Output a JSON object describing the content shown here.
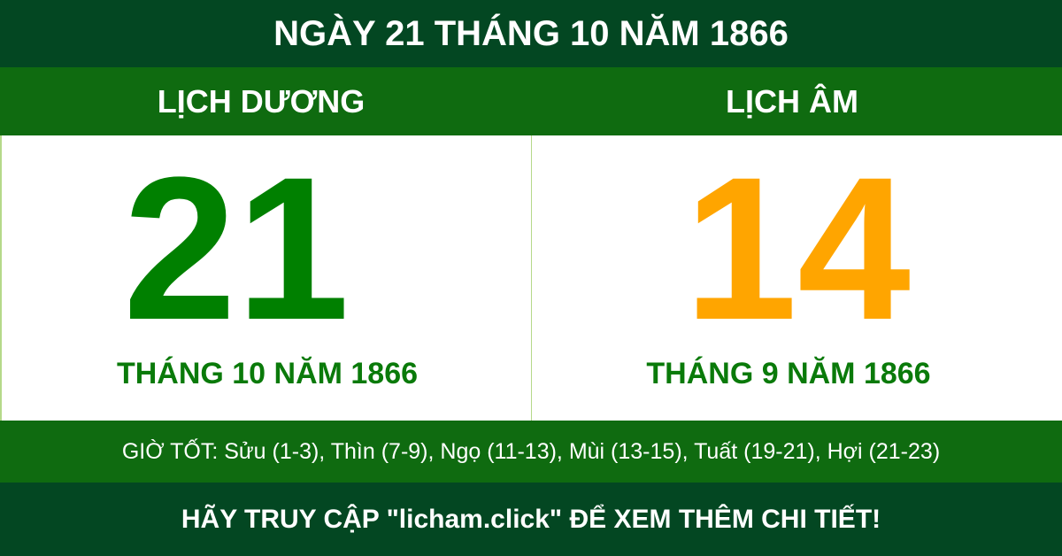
{
  "title": "NGÀY 21 THÁNG 10 NĂM 1866",
  "solar": {
    "heading": "LỊCH DƯƠNG",
    "day": "21",
    "month_year": "THÁNG 10 NĂM 1866"
  },
  "lunar": {
    "heading": "LỊCH ÂM",
    "day": "14",
    "month_year": "THÁNG 9 NĂM 1866"
  },
  "good_hours": "GIỜ TỐT: Sửu (1-3), Thìn (7-9), Ngọ (11-13), Mùi (13-15), Tuất (19-21), Hợi (21-23)",
  "footer": "HÃY TRUY CẬP \"licham.click\" ĐỂ XEM THÊM CHI TIẾT!",
  "colors": {
    "dark_green": "#034722",
    "band_green": "#0f6b10",
    "solar_day": "#008000",
    "lunar_day": "#ffa500"
  }
}
